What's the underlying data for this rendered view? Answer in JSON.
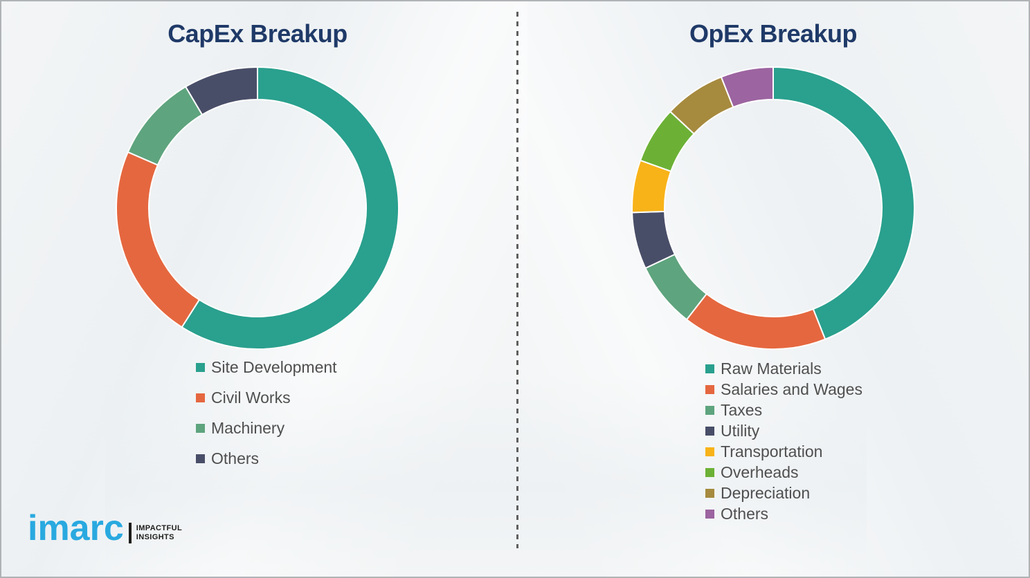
{
  "page": {
    "background_color": "#f3f5f6",
    "border_color": "#b0b3b6",
    "divider_color": "#5f5f5f",
    "title_color": "#1f3a68",
    "legend_text_color": "#4f4f4f"
  },
  "chart_data": [
    {
      "type": "pie",
      "subtype": "donut",
      "title": "CapEx Breakup",
      "categories": [
        "Site Development",
        "Civil Works",
        "Machinery",
        "Others"
      ],
      "values": [
        59,
        22.5,
        10,
        8.5
      ],
      "colors": [
        "#2aa08e",
        "#e5673f",
        "#5ea47e",
        "#494e68"
      ],
      "units": "percent",
      "start_angle_deg": 0,
      "direction": "clockwise",
      "inner_radius_ratio": 0.77,
      "legend_position": "below-left",
      "data_labels": "none"
    },
    {
      "type": "pie",
      "subtype": "donut",
      "title": "OpEx Breakup",
      "categories": [
        "Raw Materials",
        "Salaries and Wages",
        "Taxes",
        "Utility",
        "Transportation",
        "Overheads",
        "Depreciation",
        "Others"
      ],
      "values": [
        44,
        16.5,
        7.5,
        6.5,
        6,
        6.5,
        7,
        6
      ],
      "colors": [
        "#2aa08e",
        "#e5673f",
        "#5ea47e",
        "#494e68",
        "#f8b319",
        "#6cb136",
        "#a68a3e",
        "#9c64a0"
      ],
      "units": "percent",
      "start_angle_deg": 0,
      "direction": "clockwise",
      "inner_radius_ratio": 0.77,
      "legend_position": "below-left",
      "data_labels": "none"
    }
  ],
  "logo": {
    "brand": "imarc",
    "brand_color": "#29a9e0",
    "tagline_line1": "IMPACTFUL",
    "tagline_line2": "INSIGHTS",
    "tagline_color": "#1d1d1b"
  }
}
